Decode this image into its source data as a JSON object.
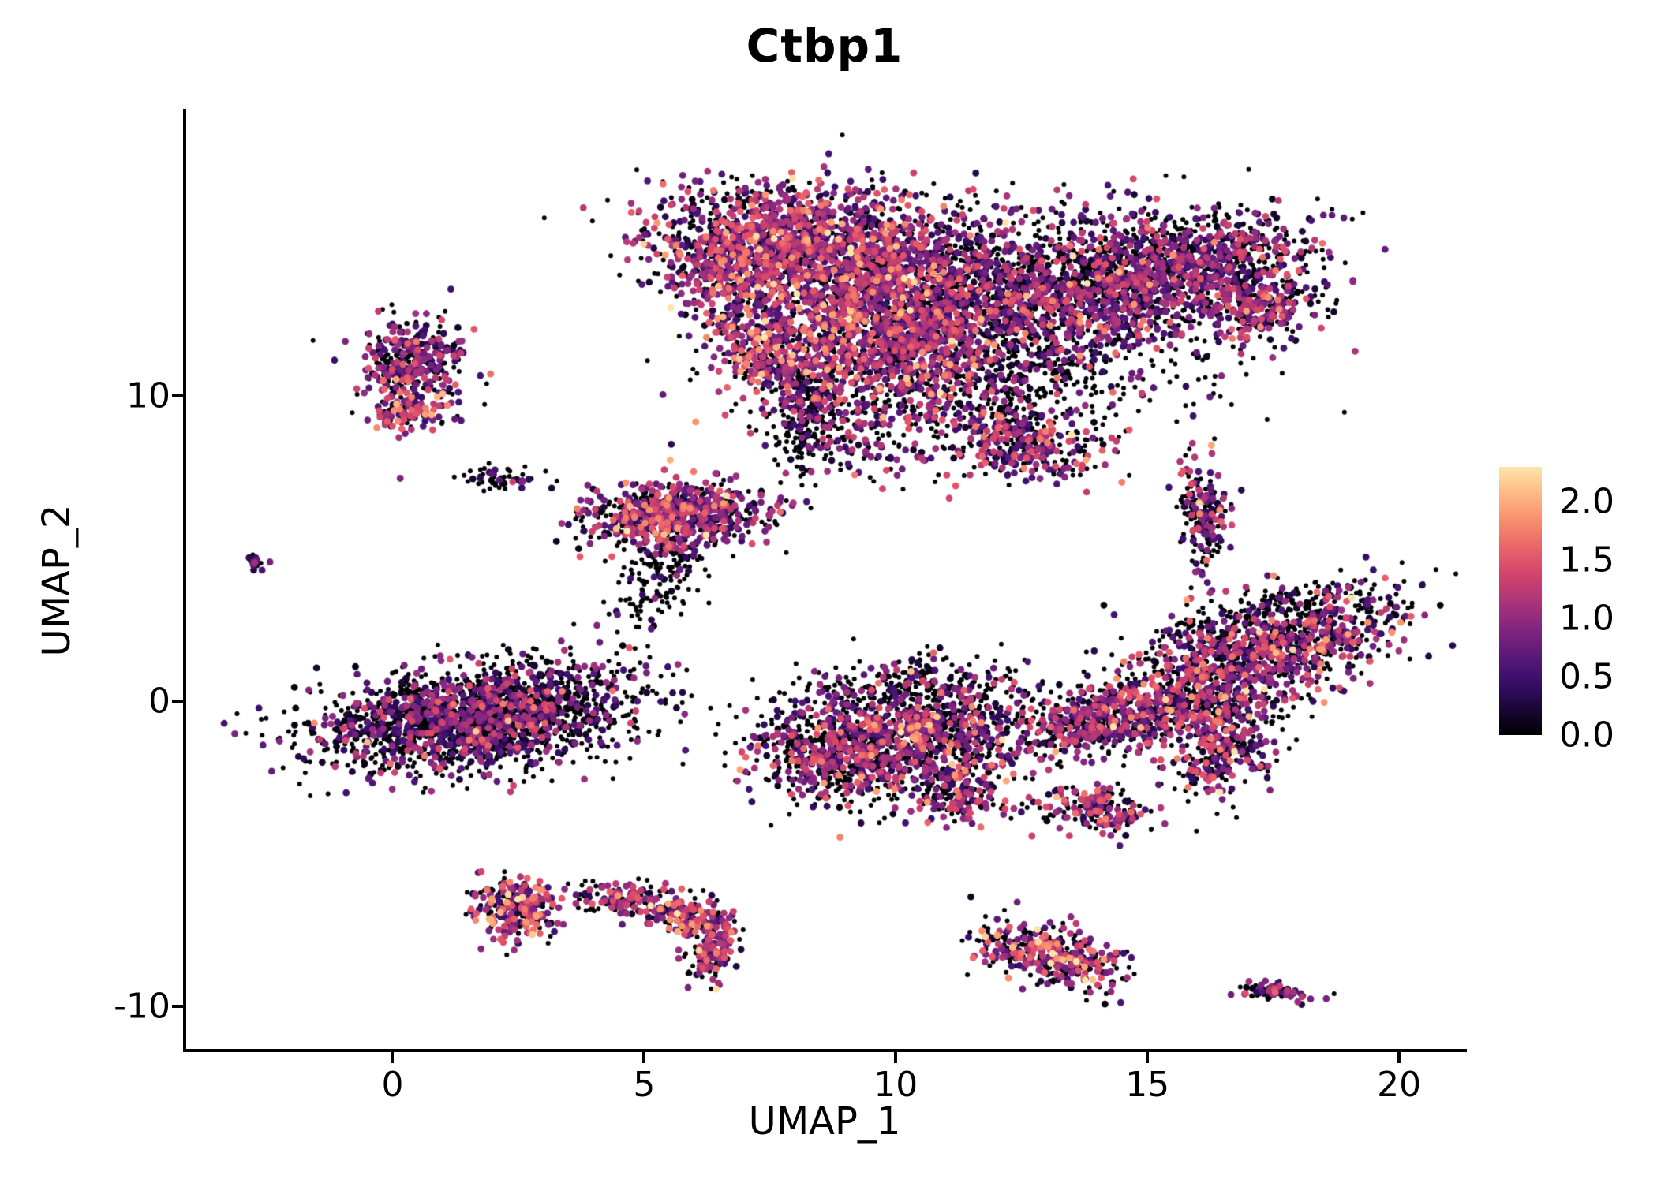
{
  "title": "Ctbp1",
  "chart_data": {
    "type": "scatter",
    "title": "Ctbp1",
    "xlabel": "UMAP_1",
    "ylabel": "UMAP_2",
    "xlim": [
      -4.1,
      21.3
    ],
    "ylim": [
      -11.4,
      19.4
    ],
    "x_ticks": [
      0,
      5,
      10,
      15,
      20
    ],
    "x_tick_labels": [
      "0",
      "5",
      "10",
      "15",
      "20"
    ],
    "y_ticks": [
      -10,
      0,
      10
    ],
    "y_tick_labels": [
      "-10",
      "0",
      "10"
    ],
    "grid": false,
    "background_color": "#ffffff",
    "axis_color": "#000000",
    "legend": {
      "type": "colorbar",
      "position": "right",
      "tick_values": [
        2.0,
        1.5,
        1.0,
        0.5,
        0.0
      ],
      "tick_labels": [
        "2.0",
        "1.5",
        "1.0",
        "0.5",
        "0.0"
      ],
      "value_min": 0,
      "value_max": 2.3,
      "colormap": "magma",
      "colormap_top_t": 0.95,
      "colormap_stops": [
        {
          "t": 0.0,
          "c": "#000004"
        },
        {
          "t": 0.2,
          "c": "#3b0f70"
        },
        {
          "t": 0.4,
          "c": "#8c2981"
        },
        {
          "t": 0.6,
          "c": "#de4968"
        },
        {
          "t": 0.8,
          "c": "#fe9f6d"
        },
        {
          "t": 1.0,
          "c": "#fcfdbf"
        }
      ]
    },
    "point_style": {
      "radius_zero": 3.0,
      "radius_expr": 4.4,
      "seed": 42
    },
    "clusters": [
      {
        "cx": 8.2,
        "cy": 14.9,
        "sx": 1.5,
        "sy": 0.95,
        "rot": -10,
        "n": 1400,
        "p0": 0.32,
        "mean": 0.95,
        "sd": 0.5
      },
      {
        "cx": 9.6,
        "cy": 12.3,
        "sx": 1.15,
        "sy": 1.45,
        "rot": 0,
        "n": 1100,
        "p0": 0.3,
        "mean": 1.0,
        "sd": 0.5
      },
      {
        "cx": 13.9,
        "cy": 13.6,
        "sx": 1.9,
        "sy": 1.15,
        "rot": 8,
        "n": 1700,
        "p0": 0.48,
        "mean": 0.85,
        "sd": 0.45
      },
      {
        "cx": 11.3,
        "cy": 12.6,
        "sx": 1.6,
        "sy": 1.6,
        "rot": 0,
        "n": 900,
        "p0": 0.65,
        "mean": 0.7,
        "sd": 0.4
      },
      {
        "cx": 11.6,
        "cy": 10.6,
        "sx": 2.2,
        "sy": 0.95,
        "rot": 0,
        "n": 500,
        "p0": 0.6,
        "mean": 0.8,
        "sd": 0.45
      },
      {
        "cx": 8.15,
        "cy": 9.4,
        "sx": 0.3,
        "sy": 0.95,
        "rot": 0,
        "n": 220,
        "p0": 0.78,
        "mean": 0.5,
        "sd": 0.35
      },
      {
        "cx": 12.5,
        "cy": 8.5,
        "sx": 0.85,
        "sy": 0.6,
        "rot": -15,
        "n": 330,
        "p0": 0.42,
        "mean": 0.9,
        "sd": 0.5
      },
      {
        "cx": 17.2,
        "cy": 12.9,
        "sx": 0.55,
        "sy": 0.5,
        "rot": 0,
        "n": 230,
        "p0": 0.42,
        "mean": 0.9,
        "sd": 0.45
      },
      {
        "cx": 15.9,
        "cy": 14.6,
        "sx": 1.15,
        "sy": 0.7,
        "rot": 15,
        "n": 520,
        "p0": 0.55,
        "mean": 0.75,
        "sd": 0.4
      },
      {
        "cx": 6.7,
        "cy": 14.2,
        "sx": 0.6,
        "sy": 0.95,
        "rot": 0,
        "n": 300,
        "p0": 0.35,
        "mean": 1.0,
        "sd": 0.5
      },
      {
        "cx": 7.3,
        "cy": 11.3,
        "sx": 0.5,
        "sy": 0.85,
        "rot": 20,
        "n": 270,
        "p0": 0.33,
        "mean": 1.1,
        "sd": 0.5
      },
      {
        "cx": 9.5,
        "cy": 8.7,
        "sx": 0.7,
        "sy": 0.7,
        "rot": -40,
        "n": 140,
        "p0": 0.5,
        "mean": 0.8,
        "sd": 0.45
      },
      {
        "cx": 0.35,
        "cy": 11.0,
        "sx": 0.5,
        "sy": 0.8,
        "rot": 0,
        "n": 380,
        "p0": 0.42,
        "mean": 0.85,
        "sd": 0.45
      },
      {
        "cx": 0.4,
        "cy": 9.4,
        "sx": 0.32,
        "sy": 0.25,
        "rot": 0,
        "n": 90,
        "p0": 0.3,
        "mean": 1.1,
        "sd": 0.5
      },
      {
        "cx": -2.72,
        "cy": 4.55,
        "sx": 0.1,
        "sy": 0.12,
        "rot": 0,
        "n": 18,
        "p0": 0.5,
        "mean": 0.7,
        "sd": 0.4
      },
      {
        "cx": 2.05,
        "cy": 7.3,
        "sx": 0.42,
        "sy": 0.22,
        "rot": 10,
        "n": 55,
        "p0": 0.7,
        "mean": 0.5,
        "sd": 0.4
      },
      {
        "cx": 5.6,
        "cy": 6.1,
        "sx": 0.98,
        "sy": 0.5,
        "rot": 5,
        "n": 700,
        "p0": 0.36,
        "mean": 1.0,
        "sd": 0.5
      },
      {
        "cx": 5.3,
        "cy": 4.0,
        "sx": 0.4,
        "sy": 0.95,
        "rot": -15,
        "n": 160,
        "p0": 0.82,
        "mean": 0.4,
        "sd": 0.3
      },
      {
        "cx": 1.7,
        "cy": -0.55,
        "sx": 1.55,
        "sy": 0.8,
        "rot": 12,
        "n": 2100,
        "p0": 0.62,
        "mean": 0.7,
        "sd": 0.45
      },
      {
        "cx": 9.0,
        "cy": -1.7,
        "sx": 0.95,
        "sy": 0.78,
        "rot": -10,
        "n": 750,
        "p0": 0.5,
        "mean": 0.85,
        "sd": 0.5
      },
      {
        "cx": 10.9,
        "cy": -1.0,
        "sx": 1.05,
        "sy": 0.85,
        "rot": 30,
        "n": 650,
        "p0": 0.46,
        "mean": 0.9,
        "sd": 0.5
      },
      {
        "cx": 10.1,
        "cy": 0.4,
        "sx": 1.1,
        "sy": 0.5,
        "rot": 10,
        "n": 260,
        "p0": 0.72,
        "mean": 0.6,
        "sd": 0.4
      },
      {
        "cx": 11.3,
        "cy": -3.0,
        "sx": 0.45,
        "sy": 0.55,
        "rot": 0,
        "n": 170,
        "p0": 0.46,
        "mean": 0.9,
        "sd": 0.5
      },
      {
        "cx": 17.3,
        "cy": 1.7,
        "sx": 1.5,
        "sy": 0.75,
        "rot": 25,
        "n": 950,
        "p0": 0.46,
        "mean": 0.9,
        "sd": 0.5
      },
      {
        "cx": 17.6,
        "cy": 2.9,
        "sx": 1.2,
        "sy": 0.42,
        "rot": 20,
        "n": 220,
        "p0": 0.75,
        "mean": 0.5,
        "sd": 0.35
      },
      {
        "cx": 15.3,
        "cy": -0.2,
        "sx": 1.1,
        "sy": 0.6,
        "rot": 15,
        "n": 550,
        "p0": 0.5,
        "mean": 0.85,
        "sd": 0.5
      },
      {
        "cx": 16.5,
        "cy": -1.6,
        "sx": 0.45,
        "sy": 0.85,
        "rot": -20,
        "n": 260,
        "p0": 0.46,
        "mean": 0.9,
        "sd": 0.5
      },
      {
        "cx": 13.8,
        "cy": -0.8,
        "sx": 0.7,
        "sy": 0.5,
        "rot": 20,
        "n": 280,
        "p0": 0.56,
        "mean": 0.8,
        "sd": 0.45
      },
      {
        "cx": 16.1,
        "cy": 6.2,
        "sx": 0.26,
        "sy": 0.95,
        "rot": 5,
        "n": 190,
        "p0": 0.46,
        "mean": 0.9,
        "sd": 0.5
      },
      {
        "cx": 14.0,
        "cy": -3.6,
        "sx": 0.55,
        "sy": 0.35,
        "rot": -10,
        "n": 190,
        "p0": 0.4,
        "mean": 1.0,
        "sd": 0.55
      },
      {
        "cx": 2.45,
        "cy": -6.8,
        "sx": 0.4,
        "sy": 0.52,
        "rot": 0,
        "n": 260,
        "p0": 0.36,
        "mean": 1.1,
        "sd": 0.55
      },
      {
        "cx": 4.7,
        "cy": -6.55,
        "sx": 0.55,
        "sy": 0.28,
        "rot": -8,
        "n": 170,
        "p0": 0.4,
        "mean": 1.0,
        "sd": 0.5
      },
      {
        "cx": 5.9,
        "cy": -7.1,
        "sx": 0.4,
        "sy": 0.3,
        "rot": -35,
        "n": 130,
        "p0": 0.4,
        "mean": 1.0,
        "sd": 0.5
      },
      {
        "cx": 6.35,
        "cy": -8.2,
        "sx": 0.22,
        "sy": 0.62,
        "rot": -10,
        "n": 150,
        "p0": 0.4,
        "mean": 1.0,
        "sd": 0.55
      },
      {
        "cx": 13.0,
        "cy": -8.3,
        "sx": 0.78,
        "sy": 0.45,
        "rot": -25,
        "n": 380,
        "p0": 0.4,
        "mean": 1.05,
        "sd": 0.55
      },
      {
        "cx": 17.5,
        "cy": -9.5,
        "sx": 0.35,
        "sy": 0.16,
        "rot": -10,
        "n": 70,
        "p0": 0.5,
        "mean": 0.8,
        "sd": 0.45
      }
    ]
  }
}
